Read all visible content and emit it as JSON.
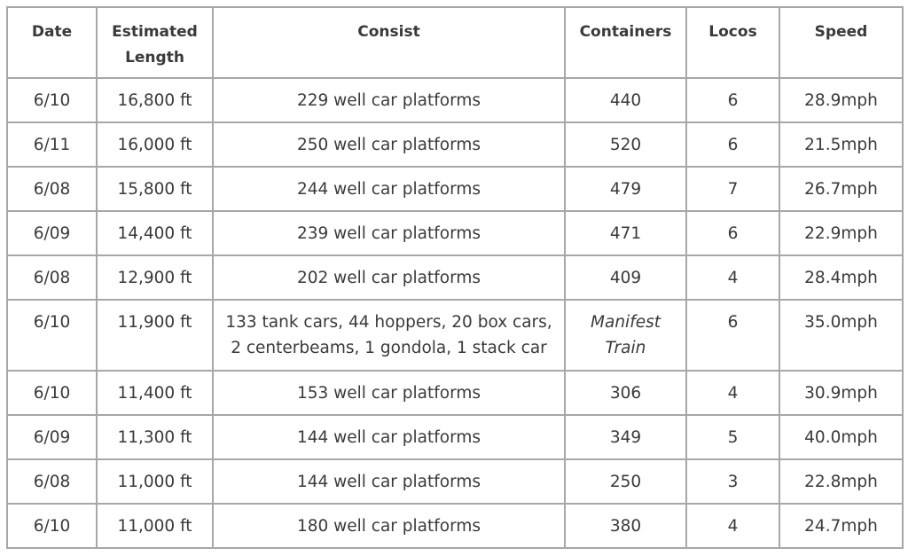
{
  "table": {
    "headers": {
      "date": "Date",
      "length": "Estimated\nLength",
      "consist": "Consist",
      "containers": "Containers",
      "locos": "Locos",
      "speed": "Speed"
    },
    "rows": [
      {
        "date": "6/10",
        "length": "16,800 ft",
        "consist": "229 well car platforms",
        "containers": "440",
        "locos": "6",
        "speed": "28.9mph"
      },
      {
        "date": "6/11",
        "length": "16,000 ft",
        "consist": "250 well car platforms",
        "containers": "520",
        "locos": "6",
        "speed": "21.5mph"
      },
      {
        "date": "6/08",
        "length": "15,800 ft",
        "consist": "244 well car platforms",
        "containers": "479",
        "locos": "7",
        "speed": "26.7mph"
      },
      {
        "date": "6/09",
        "length": "14,400 ft",
        "consist": "239 well car platforms",
        "containers": "471",
        "locos": "6",
        "speed": "22.9mph"
      },
      {
        "date": "6/08",
        "length": "12,900 ft",
        "consist": "202 well car platforms",
        "containers": "409",
        "locos": "4",
        "speed": "28.4mph"
      },
      {
        "date": "6/10",
        "length": "11,900 ft",
        "consist": "133 tank cars, 44 hoppers, 20 box cars,\n2 centerbeams, 1 gondola, 1 stack car",
        "containers": "Manifest\nTrain",
        "locos": "6",
        "speed": "35.0mph"
      },
      {
        "date": "6/10",
        "length": "11,400 ft",
        "consist": "153 well car platforms",
        "containers": "306",
        "locos": "4",
        "speed": "30.9mph"
      },
      {
        "date": "6/09",
        "length": "11,300 ft",
        "consist": "144 well car platforms",
        "containers": "349",
        "locos": "5",
        "speed": "40.0mph"
      },
      {
        "date": "6/08",
        "length": "11,000 ft",
        "consist": "144 well car platforms",
        "containers": "250",
        "locos": "3",
        "speed": "22.8mph"
      },
      {
        "date": "6/10",
        "length": "11,000 ft",
        "consist": "180 well car platforms",
        "containers": "380",
        "locos": "4",
        "speed": "24.7mph"
      }
    ]
  }
}
